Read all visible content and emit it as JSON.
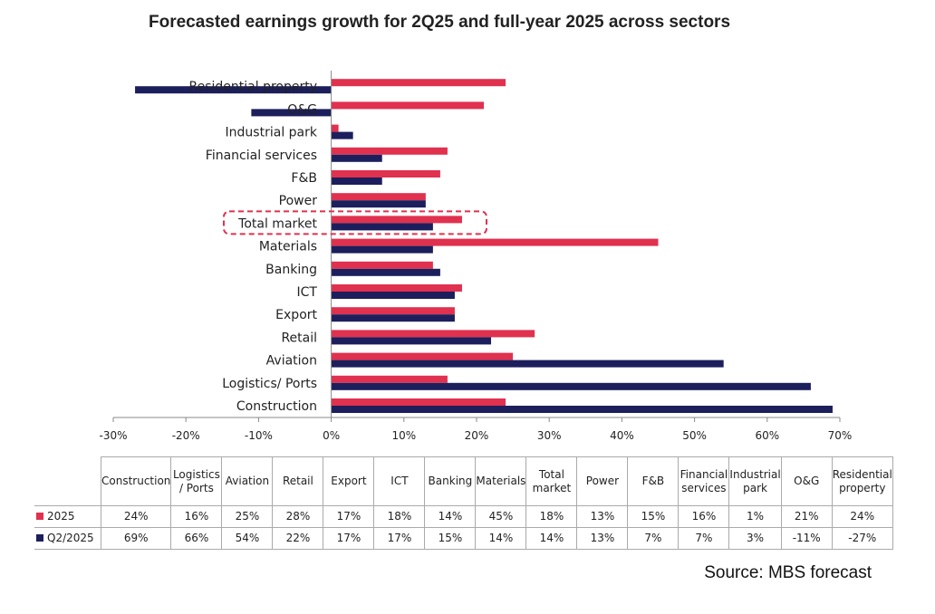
{
  "chart_data": {
    "type": "bar",
    "orientation": "horizontal",
    "title": "Forecasted earnings growth for 2Q25 and full-year 2025 across sectors",
    "categories": [
      "Construction",
      "Logistics/ Ports",
      "Aviation",
      "Retail",
      "Export",
      "ICT",
      "Banking",
      "Materials",
      "Total market",
      "Power",
      "F&B",
      "Financial services",
      "Industrial park",
      "O&G",
      "Residential property"
    ],
    "table_headers": [
      "Construction",
      "Logistics / Ports",
      "Aviation",
      "Retail",
      "Export",
      "ICT",
      "Banking",
      "Materials",
      "Total market",
      "Power",
      "F&B",
      "Financial services",
      "Industrial park",
      "O&G",
      "Residential property"
    ],
    "series": [
      {
        "name": "2025",
        "color": "#E0314F",
        "values": [
          24,
          16,
          25,
          28,
          17,
          18,
          14,
          45,
          18,
          13,
          15,
          16,
          1,
          21,
          24
        ]
      },
      {
        "name": "Q2/2025",
        "color": "#1C1F5C",
        "values": [
          69,
          66,
          54,
          22,
          17,
          17,
          15,
          14,
          14,
          13,
          7,
          7,
          3,
          -11,
          -27
        ]
      }
    ],
    "xlim": [
      -30,
      70
    ],
    "xticks": [
      -30,
      -20,
      -10,
      0,
      10,
      20,
      30,
      40,
      50,
      60,
      70
    ],
    "tick_suffix": "%",
    "highlighted_category": "Total market",
    "grid": false
  },
  "source": "Source: MBS forecast"
}
